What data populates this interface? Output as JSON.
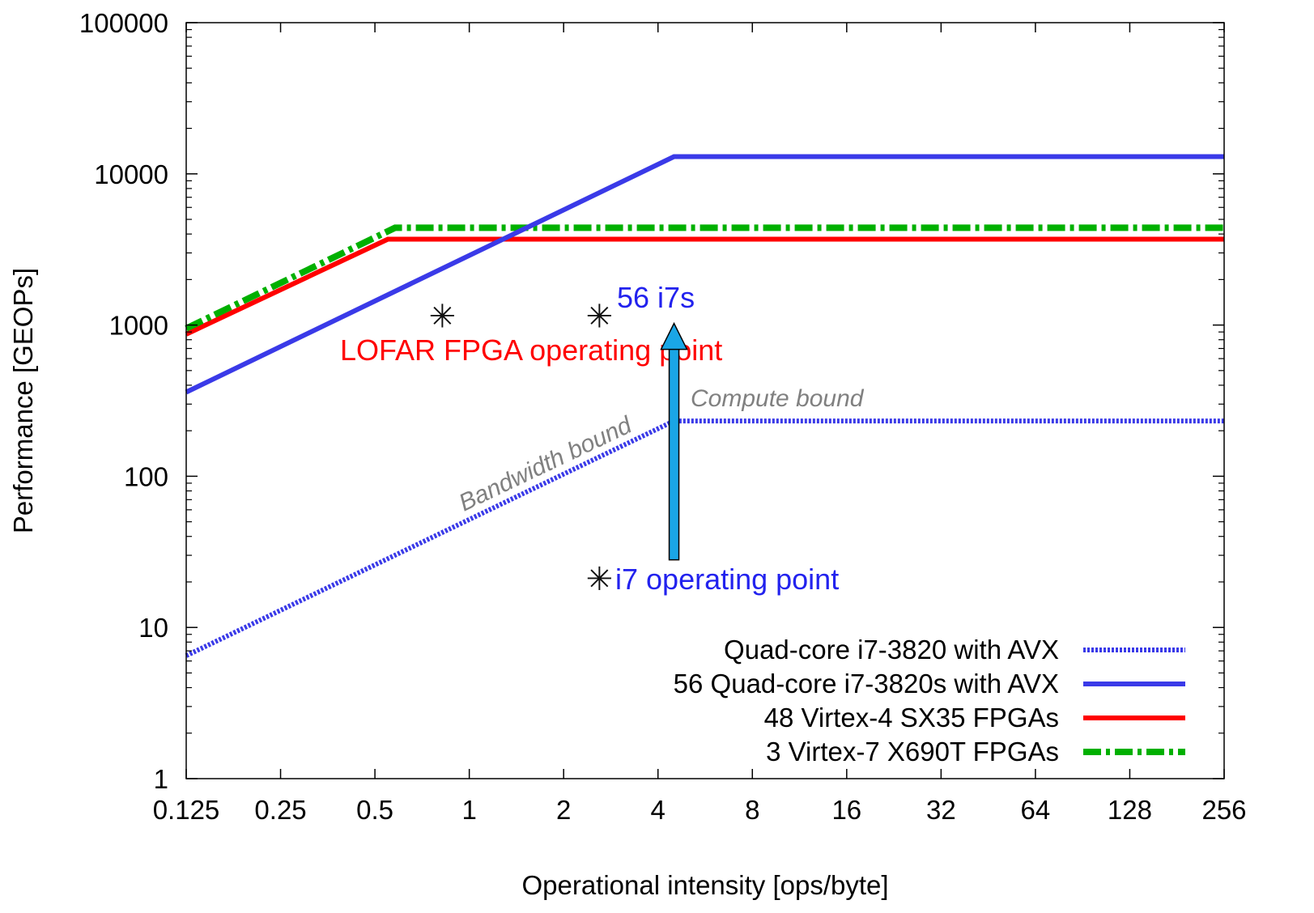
{
  "chart_data": {
    "type": "line",
    "title": "",
    "xlabel": "Operational intensity [ops/byte]",
    "ylabel": "Performance [GEOPs]",
    "x_scale": "log2",
    "y_scale": "log10",
    "xlim": [
      0.125,
      256
    ],
    "ylim": [
      1,
      100000
    ],
    "x_ticks": [
      0.125,
      0.25,
      0.5,
      1,
      2,
      4,
      8,
      16,
      32,
      64,
      128,
      256
    ],
    "x_tick_labels": [
      "0.125",
      "0.25",
      "0.5",
      "1",
      "2",
      "4",
      "8",
      "16",
      "32",
      "64",
      "128",
      "256"
    ],
    "y_ticks": [
      1,
      10,
      100,
      1000,
      10000,
      100000
    ],
    "y_tick_labels": [
      "1",
      "10",
      "100",
      "1000",
      "10000",
      "100000"
    ],
    "grid": false,
    "legend_position": "bottom-right",
    "series": [
      {
        "name": "Quad-core i7-3820 with AVX",
        "color": "#3a3ae8",
        "style": "dotted",
        "points": [
          [
            0.125,
            6.5
          ],
          [
            4.5,
            232
          ],
          [
            256,
            232
          ]
        ]
      },
      {
        "name": "56 Quad-core i7-3820s with AVX",
        "color": "#3a3ae8",
        "style": "solid",
        "points": [
          [
            0.125,
            360
          ],
          [
            4.5,
            13000
          ],
          [
            256,
            13000
          ]
        ]
      },
      {
        "name": "48 Virtex-4 SX35 FPGAs",
        "color": "#ff0000",
        "style": "solid",
        "points": [
          [
            0.125,
            870
          ],
          [
            0.55,
            3700
          ],
          [
            256,
            3700
          ]
        ]
      },
      {
        "name": "3 Virtex-7 X690T FPGAs",
        "color": "#00b000",
        "style": "dashdot",
        "points": [
          [
            0.125,
            950
          ],
          [
            0.58,
            4400
          ],
          [
            256,
            4400
          ]
        ]
      }
    ],
    "markers": [
      {
        "x": 0.82,
        "y": 1150,
        "symbol": "✳"
      },
      {
        "x": 2.6,
        "y": 1150,
        "symbol": "✳"
      },
      {
        "x": 2.6,
        "y": 21,
        "symbol": "✳"
      }
    ],
    "annotations": {
      "lofar": {
        "text": "LOFAR FPGA operating point",
        "color": "#ff0000"
      },
      "i7s56": {
        "text": "56 i7s",
        "color": "#2222ee"
      },
      "i7op": {
        "text": "i7 operating point",
        "color": "#2222ee"
      },
      "compute": {
        "text": "Compute bound",
        "color": "#808080"
      },
      "bandwidth": {
        "text": "Bandwidth bound",
        "color": "#808080"
      }
    },
    "arrow": {
      "x": 4.5,
      "y_from": 28,
      "y_to": 1000,
      "color": "#1aa6e6"
    }
  }
}
